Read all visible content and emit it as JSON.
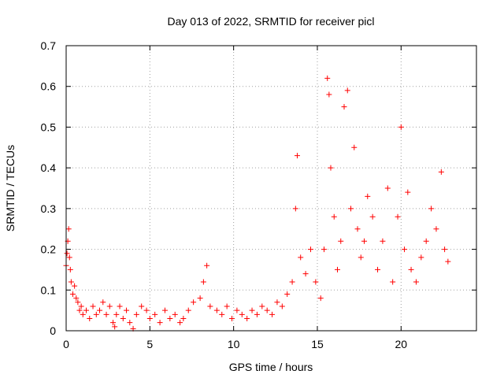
{
  "chart_data": {
    "type": "scatter",
    "title": "Day 013 of 2022, SRMTID for receiver picl",
    "xlabel": "GPS time / hours",
    "ylabel": "SRMTID / TECUs",
    "xlim": [
      0,
      24.5
    ],
    "ylim": [
      0,
      0.7
    ],
    "x_ticks": [
      0,
      5,
      10,
      15,
      20
    ],
    "x_tick_labels": [
      "0",
      "5",
      "10",
      "15",
      "20"
    ],
    "y_ticks": [
      0,
      0.1,
      0.2,
      0.3,
      0.4,
      0.5,
      0.6,
      0.7
    ],
    "y_tick_labels": [
      "0",
      "0.1",
      "0.2",
      "0.3",
      "0.4",
      "0.5",
      "0.6",
      "0.7"
    ],
    "grid": true,
    "marker": "plus",
    "color": "#ff0000",
    "series": [
      {
        "name": "SRMTID",
        "points": [
          [
            0.0,
            0.16
          ],
          [
            0.05,
            0.19
          ],
          [
            0.1,
            0.22
          ],
          [
            0.15,
            0.25
          ],
          [
            0.2,
            0.18
          ],
          [
            0.25,
            0.15
          ],
          [
            0.3,
            0.12
          ],
          [
            0.4,
            0.09
          ],
          [
            0.5,
            0.11
          ],
          [
            0.6,
            0.08
          ],
          [
            0.7,
            0.07
          ],
          [
            0.8,
            0.05
          ],
          [
            0.9,
            0.06
          ],
          [
            1.0,
            0.04
          ],
          [
            1.2,
            0.05
          ],
          [
            1.4,
            0.03
          ],
          [
            1.6,
            0.06
          ],
          [
            1.8,
            0.04
          ],
          [
            2.0,
            0.05
          ],
          [
            2.2,
            0.07
          ],
          [
            2.4,
            0.04
          ],
          [
            2.6,
            0.06
          ],
          [
            2.8,
            0.02
          ],
          [
            2.9,
            0.01
          ],
          [
            3.0,
            0.04
          ],
          [
            3.2,
            0.06
          ],
          [
            3.4,
            0.03
          ],
          [
            3.6,
            0.05
          ],
          [
            3.8,
            0.02
          ],
          [
            4.0,
            0.005
          ],
          [
            4.2,
            0.04
          ],
          [
            4.5,
            0.06
          ],
          [
            4.8,
            0.05
          ],
          [
            5.0,
            0.03
          ],
          [
            5.3,
            0.04
          ],
          [
            5.6,
            0.02
          ],
          [
            5.9,
            0.05
          ],
          [
            6.2,
            0.03
          ],
          [
            6.5,
            0.04
          ],
          [
            6.8,
            0.02
          ],
          [
            7.0,
            0.03
          ],
          [
            7.3,
            0.05
          ],
          [
            7.6,
            0.07
          ],
          [
            8.0,
            0.08
          ],
          [
            8.2,
            0.12
          ],
          [
            8.4,
            0.16
          ],
          [
            8.6,
            0.06
          ],
          [
            9.0,
            0.05
          ],
          [
            9.3,
            0.04
          ],
          [
            9.6,
            0.06
          ],
          [
            9.9,
            0.03
          ],
          [
            10.2,
            0.05
          ],
          [
            10.5,
            0.04
          ],
          [
            10.8,
            0.03
          ],
          [
            11.1,
            0.05
          ],
          [
            11.4,
            0.04
          ],
          [
            11.7,
            0.06
          ],
          [
            12.0,
            0.05
          ],
          [
            12.3,
            0.04
          ],
          [
            12.6,
            0.07
          ],
          [
            12.9,
            0.06
          ],
          [
            13.2,
            0.09
          ],
          [
            13.5,
            0.12
          ],
          [
            13.7,
            0.3
          ],
          [
            13.8,
            0.43
          ],
          [
            14.0,
            0.18
          ],
          [
            14.3,
            0.14
          ],
          [
            14.6,
            0.2
          ],
          [
            14.9,
            0.12
          ],
          [
            15.2,
            0.08
          ],
          [
            15.4,
            0.2
          ],
          [
            15.6,
            0.62
          ],
          [
            15.7,
            0.58
          ],
          [
            15.8,
            0.4
          ],
          [
            16.0,
            0.28
          ],
          [
            16.2,
            0.15
          ],
          [
            16.4,
            0.22
          ],
          [
            16.6,
            0.55
          ],
          [
            16.8,
            0.59
          ],
          [
            17.0,
            0.3
          ],
          [
            17.2,
            0.45
          ],
          [
            17.4,
            0.25
          ],
          [
            17.6,
            0.18
          ],
          [
            17.8,
            0.22
          ],
          [
            18.0,
            0.33
          ],
          [
            18.3,
            0.28
          ],
          [
            18.6,
            0.15
          ],
          [
            18.9,
            0.22
          ],
          [
            19.2,
            0.35
          ],
          [
            19.5,
            0.12
          ],
          [
            19.8,
            0.28
          ],
          [
            20.0,
            0.5
          ],
          [
            20.2,
            0.2
          ],
          [
            20.4,
            0.34
          ],
          [
            20.6,
            0.15
          ],
          [
            20.9,
            0.12
          ],
          [
            21.2,
            0.18
          ],
          [
            21.5,
            0.22
          ],
          [
            21.8,
            0.3
          ],
          [
            22.1,
            0.25
          ],
          [
            22.4,
            0.39
          ],
          [
            22.6,
            0.2
          ],
          [
            22.8,
            0.17
          ]
        ]
      }
    ]
  }
}
